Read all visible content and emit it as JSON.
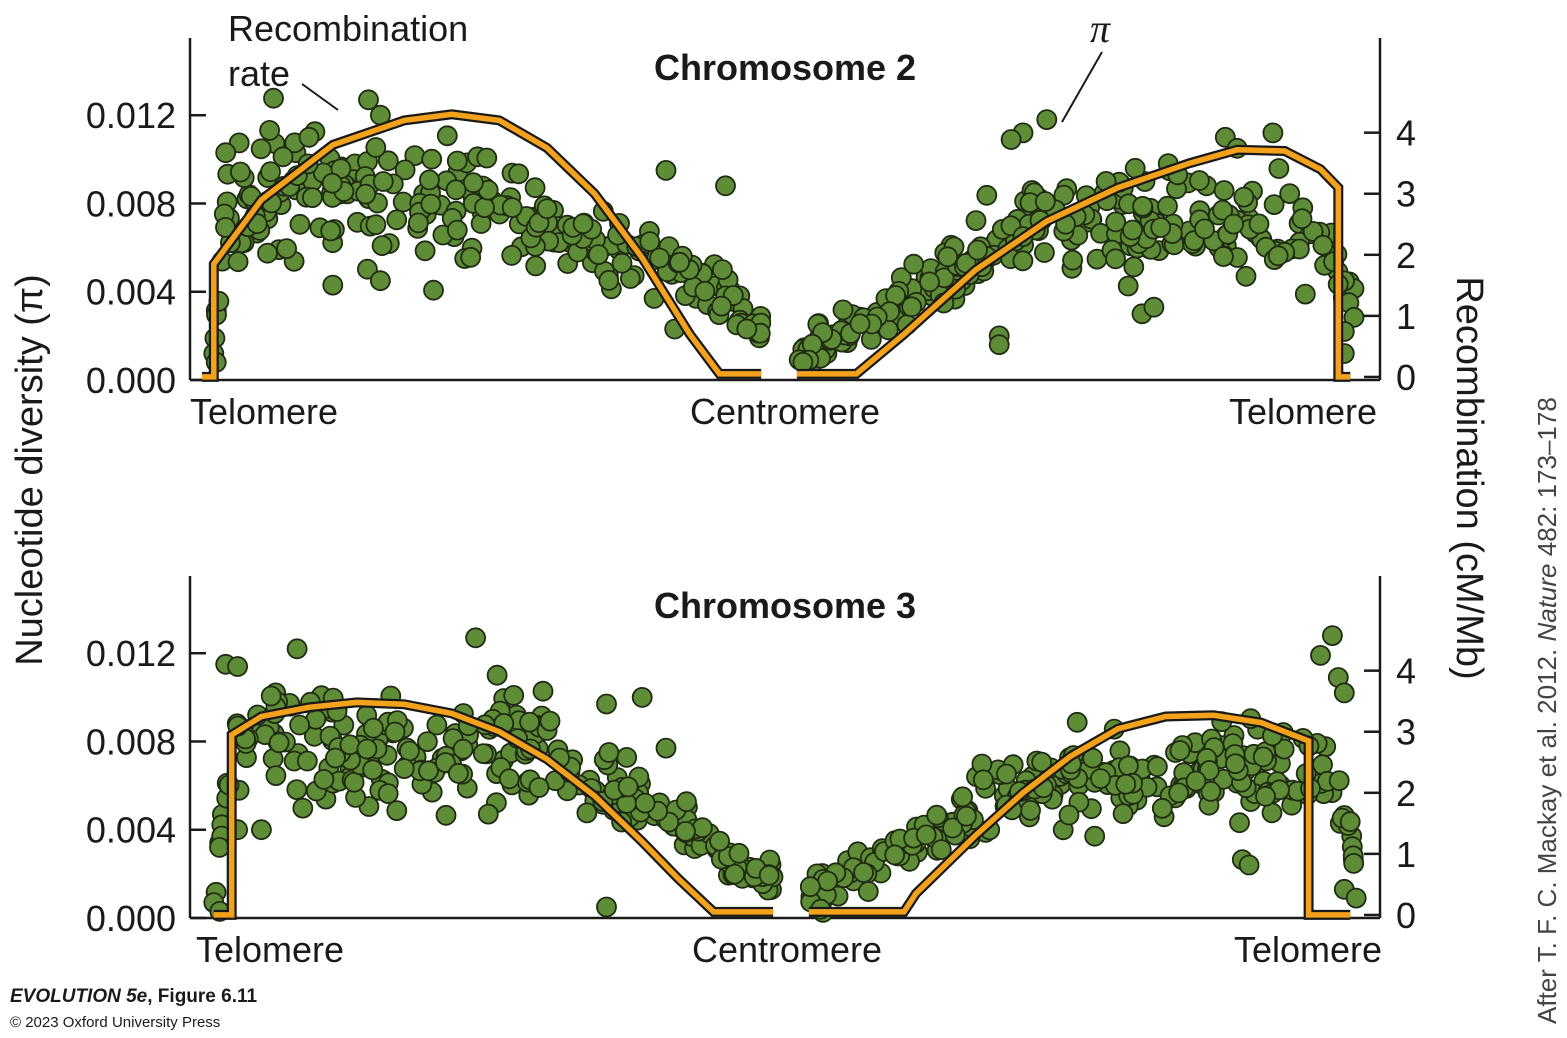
{
  "figure": {
    "caption_book": "EVOLUTION 5e",
    "caption_fig": ", Figure 6.11",
    "copyright": "© 2023 Oxford University Press",
    "credit_prefix": "After T. F. C. Mackay et al. 2012. ",
    "credit_journal": "Nature",
    "credit_suffix": " 482: 173–178",
    "left_axis_title": "Nucleotide diversity (π)",
    "right_axis_title": "Recombination (cM/Mb)",
    "annotation_recomb_line1": "Recombination",
    "annotation_recomb_line2": "rate",
    "annotation_pi": "π"
  },
  "colors": {
    "dot_fill": "#5f8c37",
    "dot_stroke": "#1f2b12",
    "recomb_fill": "#f4a21c",
    "recomb_stroke": "#1a1a1a",
    "axis": "#1a1a1a"
  },
  "chart_data": [
    {
      "type": "scatter",
      "title": "Chromosome 2",
      "xlabel_left": "Telomere",
      "xlabel_center": "Centromere",
      "xlabel_right": "Telomere",
      "ylabel": "Nucleotide diversity (π)",
      "ylabel_right": "Recombination (cM/Mb)",
      "ylim": [
        0,
        0.0155
      ],
      "yticks": [
        "0.000",
        "0.004",
        "0.008",
        "0.012"
      ],
      "yticks_values": [
        0,
        0.004,
        0.008,
        0.012
      ],
      "y2lim": [
        -0.05,
        5.55
      ],
      "y2ticks": [
        "0",
        "1",
        "2",
        "3",
        "4"
      ],
      "y2ticks_values": [
        0,
        1,
        2,
        3,
        4
      ],
      "xlim": [
        0,
        1
      ],
      "arms": [
        [
          0.02,
          0.48
        ],
        [
          0.51,
          0.98
        ]
      ],
      "recombination_rate": [
        [
          0.01,
          0
        ],
        [
          0.02,
          0
        ],
        [
          0.02,
          1.85
        ],
        [
          0.06,
          2.9
        ],
        [
          0.12,
          3.8
        ],
        [
          0.18,
          4.2
        ],
        [
          0.22,
          4.3
        ],
        [
          0.26,
          4.2
        ],
        [
          0.3,
          3.75
        ],
        [
          0.34,
          3.0
        ],
        [
          0.38,
          1.95
        ],
        [
          0.42,
          0.7
        ],
        [
          0.445,
          0.05
        ],
        [
          0.48,
          0.05
        ],
        [
          0.51,
          0.05
        ],
        [
          0.56,
          0.05
        ],
        [
          0.6,
          0.7
        ],
        [
          0.66,
          1.75
        ],
        [
          0.72,
          2.55
        ],
        [
          0.78,
          3.1
        ],
        [
          0.84,
          3.5
        ],
        [
          0.88,
          3.72
        ],
        [
          0.92,
          3.7
        ],
        [
          0.95,
          3.4
        ],
        [
          0.965,
          3.1
        ],
        [
          0.965,
          0
        ],
        [
          0.975,
          0
        ]
      ],
      "pi_trend": [
        [
          0.02,
          0.0015
        ],
        [
          0.03,
          0.0075
        ],
        [
          0.06,
          0.0085
        ],
        [
          0.1,
          0.0087
        ],
        [
          0.14,
          0.0086
        ],
        [
          0.18,
          0.0083
        ],
        [
          0.22,
          0.0082
        ],
        [
          0.26,
          0.0078
        ],
        [
          0.3,
          0.007
        ],
        [
          0.34,
          0.0062
        ],
        [
          0.38,
          0.0055
        ],
        [
          0.41,
          0.0048
        ],
        [
          0.44,
          0.0042
        ],
        [
          0.46,
          0.0035
        ],
        [
          0.48,
          0.0025
        ],
        [
          0.51,
          0.0012
        ],
        [
          0.55,
          0.0022
        ],
        [
          0.59,
          0.0032
        ],
        [
          0.63,
          0.0045
        ],
        [
          0.67,
          0.0058
        ],
        [
          0.71,
          0.0068
        ],
        [
          0.75,
          0.0072
        ],
        [
          0.79,
          0.0073
        ],
        [
          0.83,
          0.0072
        ],
        [
          0.87,
          0.0072
        ],
        [
          0.91,
          0.0071
        ],
        [
          0.94,
          0.0066
        ],
        [
          0.96,
          0.0055
        ],
        [
          0.975,
          0.0038
        ],
        [
          0.985,
          0.002
        ]
      ],
      "pi_spread": 0.0016,
      "pi_n_points": 520,
      "pi_outliers": [
        [
          0.02,
          0.0012
        ],
        [
          0.022,
          0.0008
        ],
        [
          0.03,
          0.0103
        ],
        [
          0.1,
          0.011
        ],
        [
          0.15,
          0.0127
        ],
        [
          0.16,
          0.012
        ],
        [
          0.16,
          0.0045
        ],
        [
          0.12,
          0.0043
        ],
        [
          0.4,
          0.0095
        ],
        [
          0.45,
          0.0088
        ],
        [
          0.39,
          0.0037
        ],
        [
          0.7,
          0.0112
        ],
        [
          0.72,
          0.0118
        ],
        [
          0.69,
          0.0109
        ],
        [
          0.7,
          0.0065
        ],
        [
          0.68,
          0.002
        ],
        [
          0.68,
          0.0016
        ],
        [
          0.8,
          0.003
        ],
        [
          0.81,
          0.0033
        ],
        [
          0.87,
          0.011
        ],
        [
          0.88,
          0.0105
        ],
        [
          0.91,
          0.0112
        ],
        [
          0.83,
          0.0093
        ],
        [
          0.97,
          0.0022
        ],
        [
          0.97,
          0.0012
        ],
        [
          0.52,
          0.0009
        ],
        [
          0.515,
          0.0008
        ]
      ]
    },
    {
      "type": "scatter",
      "title": "Chromosome 3",
      "xlabel_left": "Telomere",
      "xlabel_center": "Centromere",
      "xlabel_right": "Telomere",
      "ylabel": "Nucleotide diversity (π)",
      "ylabel_right": "Recombination (cM/Mb)",
      "ylim": [
        0,
        0.0155
      ],
      "yticks": [
        "0.000",
        "0.004",
        "0.008",
        "0.012"
      ],
      "yticks_values": [
        0,
        0.004,
        0.008,
        0.012
      ],
      "y2lim": [
        -0.05,
        5.55
      ],
      "y2ticks": [
        "0",
        "1",
        "2",
        "3",
        "4"
      ],
      "y2ticks_values": [
        0,
        1,
        2,
        3,
        4
      ],
      "xlim": [
        0,
        1
      ],
      "arms": [
        [
          0.02,
          0.49
        ],
        [
          0.52,
          0.98
        ]
      ],
      "recombination_rate": [
        [
          0.02,
          0
        ],
        [
          0.035,
          0
        ],
        [
          0.035,
          2.95
        ],
        [
          0.06,
          3.25
        ],
        [
          0.1,
          3.4
        ],
        [
          0.14,
          3.48
        ],
        [
          0.18,
          3.45
        ],
        [
          0.22,
          3.3
        ],
        [
          0.26,
          3.0
        ],
        [
          0.3,
          2.55
        ],
        [
          0.34,
          1.95
        ],
        [
          0.38,
          1.2
        ],
        [
          0.41,
          0.6
        ],
        [
          0.44,
          0.05
        ],
        [
          0.49,
          0.05
        ],
        [
          0.52,
          0.05
        ],
        [
          0.6,
          0.05
        ],
        [
          0.61,
          0.35
        ],
        [
          0.66,
          1.3
        ],
        [
          0.7,
          2.0
        ],
        [
          0.74,
          2.6
        ],
        [
          0.78,
          3.05
        ],
        [
          0.82,
          3.25
        ],
        [
          0.86,
          3.27
        ],
        [
          0.9,
          3.15
        ],
        [
          0.94,
          2.85
        ],
        [
          0.94,
          0
        ],
        [
          0.975,
          0
        ]
      ],
      "pi_trend": [
        [
          0.02,
          0.001
        ],
        [
          0.03,
          0.006
        ],
        [
          0.05,
          0.0085
        ],
        [
          0.08,
          0.0085
        ],
        [
          0.12,
          0.008
        ],
        [
          0.16,
          0.0075
        ],
        [
          0.2,
          0.0075
        ],
        [
          0.24,
          0.008
        ],
        [
          0.28,
          0.0082
        ],
        [
          0.31,
          0.0072
        ],
        [
          0.34,
          0.0062
        ],
        [
          0.37,
          0.0055
        ],
        [
          0.4,
          0.0048
        ],
        [
          0.43,
          0.0035
        ],
        [
          0.46,
          0.0025
        ],
        [
          0.49,
          0.0018
        ],
        [
          0.52,
          0.001
        ],
        [
          0.56,
          0.0022
        ],
        [
          0.6,
          0.0032
        ],
        [
          0.64,
          0.0042
        ],
        [
          0.68,
          0.0054
        ],
        [
          0.72,
          0.0062
        ],
        [
          0.76,
          0.0065
        ],
        [
          0.8,
          0.0066
        ],
        [
          0.84,
          0.0065
        ],
        [
          0.88,
          0.0065
        ],
        [
          0.92,
          0.0068
        ],
        [
          0.95,
          0.0072
        ],
        [
          0.965,
          0.0055
        ],
        [
          0.98,
          0.0025
        ]
      ],
      "pi_spread": 0.0016,
      "pi_n_points": 540,
      "pi_outliers": [
        [
          0.03,
          0.0115
        ],
        [
          0.04,
          0.0114
        ],
        [
          0.09,
          0.0122
        ],
        [
          0.24,
          0.0127
        ],
        [
          0.35,
          0.0097
        ],
        [
          0.38,
          0.01
        ],
        [
          0.4,
          0.0077
        ],
        [
          0.35,
          0.0005
        ],
        [
          0.02,
          0.0007
        ],
        [
          0.025,
          0.0003
        ],
        [
          0.96,
          0.0128
        ],
        [
          0.95,
          0.0119
        ],
        [
          0.965,
          0.0109
        ],
        [
          0.97,
          0.0102
        ],
        [
          0.97,
          0.0013
        ],
        [
          0.98,
          0.0009
        ],
        [
          0.89,
          0.0024
        ],
        [
          0.57,
          0.0012
        ],
        [
          0.53,
          0.0004
        ],
        [
          0.04,
          0.004
        ],
        [
          0.06,
          0.004
        ]
      ]
    }
  ]
}
